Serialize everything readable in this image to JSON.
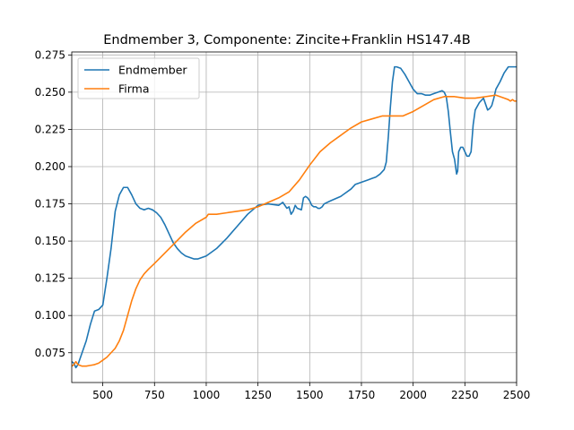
{
  "chart_data": {
    "type": "line",
    "title": "Endmember 3, Componente: Zincite+Franklin HS147.4B",
    "xlabel": "",
    "ylabel": "",
    "xlim": [
      350,
      2500
    ],
    "ylim": [
      0.055,
      0.277
    ],
    "grid": true,
    "legend_position": "top-left",
    "x_ticks": [
      500,
      750,
      1000,
      1250,
      1500,
      1750,
      2000,
      2250,
      2500
    ],
    "y_ticks": [
      0.075,
      0.1,
      0.125,
      0.15,
      0.175,
      0.2,
      0.225,
      0.25,
      0.275
    ],
    "x_tick_labels": [
      "500",
      "750",
      "1000",
      "1250",
      "1500",
      "1750",
      "2000",
      "2250",
      "2500"
    ],
    "y_tick_labels": [
      "0.075",
      "0.100",
      "0.125",
      "0.150",
      "0.175",
      "0.200",
      "0.225",
      "0.250",
      "0.275"
    ],
    "series": [
      {
        "name": "Endmember",
        "color": "#1f77b4",
        "x": [
          350,
          360,
          370,
          380,
          400,
          420,
          440,
          460,
          480,
          500,
          520,
          540,
          560,
          580,
          600,
          620,
          640,
          660,
          680,
          700,
          720,
          740,
          760,
          780,
          800,
          820,
          840,
          860,
          880,
          900,
          920,
          940,
          960,
          980,
          1000,
          1050,
          1100,
          1150,
          1200,
          1250,
          1300,
          1350,
          1370,
          1390,
          1400,
          1410,
          1420,
          1430,
          1440,
          1460,
          1470,
          1480,
          1490,
          1500,
          1510,
          1520,
          1530,
          1540,
          1550,
          1560,
          1570,
          1600,
          1650,
          1700,
          1720,
          1740,
          1760,
          1780,
          1800,
          1820,
          1840,
          1860,
          1870,
          1880,
          1890,
          1900,
          1910,
          1920,
          1940,
          1960,
          1980,
          2000,
          2020,
          2040,
          2060,
          2080,
          2100,
          2120,
          2140,
          2150,
          2160,
          2170,
          2180,
          2190,
          2200,
          2210,
          2215,
          2220,
          2230,
          2240,
          2250,
          2260,
          2270,
          2280,
          2290,
          2300,
          2320,
          2340,
          2350,
          2360,
          2370,
          2380,
          2390,
          2400,
          2420,
          2440,
          2460,
          2480,
          2500
        ],
        "y": [
          0.069,
          0.068,
          0.065,
          0.067,
          0.075,
          0.083,
          0.094,
          0.103,
          0.104,
          0.107,
          0.125,
          0.145,
          0.17,
          0.181,
          0.186,
          0.186,
          0.181,
          0.175,
          0.172,
          0.171,
          0.172,
          0.171,
          0.169,
          0.166,
          0.161,
          0.155,
          0.149,
          0.145,
          0.142,
          0.14,
          0.139,
          0.138,
          0.138,
          0.139,
          0.14,
          0.145,
          0.152,
          0.16,
          0.168,
          0.174,
          0.175,
          0.174,
          0.176,
          0.172,
          0.173,
          0.168,
          0.17,
          0.174,
          0.172,
          0.171,
          0.179,
          0.18,
          0.179,
          0.177,
          0.174,
          0.173,
          0.173,
          0.172,
          0.172,
          0.173,
          0.175,
          0.177,
          0.18,
          0.185,
          0.188,
          0.189,
          0.19,
          0.191,
          0.192,
          0.193,
          0.195,
          0.198,
          0.203,
          0.22,
          0.24,
          0.257,
          0.267,
          0.267,
          0.266,
          0.262,
          0.257,
          0.252,
          0.249,
          0.249,
          0.248,
          0.248,
          0.249,
          0.25,
          0.251,
          0.25,
          0.247,
          0.237,
          0.223,
          0.21,
          0.205,
          0.195,
          0.197,
          0.21,
          0.213,
          0.213,
          0.21,
          0.207,
          0.207,
          0.21,
          0.228,
          0.238,
          0.243,
          0.246,
          0.242,
          0.238,
          0.239,
          0.241,
          0.246,
          0.252,
          0.257,
          0.263,
          0.267,
          0.267,
          0.267
        ]
      },
      {
        "name": "Firma",
        "color": "#ff7f0e",
        "x": [
          350,
          360,
          370,
          380,
          400,
          420,
          440,
          460,
          480,
          500,
          520,
          540,
          560,
          580,
          600,
          620,
          640,
          660,
          680,
          700,
          720,
          750,
          800,
          850,
          900,
          950,
          1000,
          1010,
          1020,
          1050,
          1100,
          1150,
          1200,
          1250,
          1300,
          1350,
          1400,
          1450,
          1500,
          1550,
          1600,
          1650,
          1700,
          1750,
          1800,
          1850,
          1900,
          1950,
          2000,
          2050,
          2100,
          2150,
          2200,
          2250,
          2300,
          2350,
          2400,
          2420,
          2440,
          2460,
          2470,
          2480,
          2490,
          2500
        ],
        "y": [
          0.066,
          0.067,
          0.069,
          0.067,
          0.066,
          0.066,
          0.0665,
          0.067,
          0.068,
          0.07,
          0.072,
          0.075,
          0.078,
          0.083,
          0.09,
          0.1,
          0.11,
          0.118,
          0.124,
          0.128,
          0.131,
          0.135,
          0.142,
          0.149,
          0.156,
          0.162,
          0.166,
          0.168,
          0.168,
          0.168,
          0.169,
          0.17,
          0.171,
          0.173,
          0.176,
          0.179,
          0.183,
          0.191,
          0.201,
          0.21,
          0.216,
          0.221,
          0.226,
          0.23,
          0.232,
          0.234,
          0.234,
          0.234,
          0.237,
          0.241,
          0.245,
          0.247,
          0.247,
          0.246,
          0.246,
          0.247,
          0.248,
          0.247,
          0.246,
          0.245,
          0.244,
          0.245,
          0.244,
          0.244
        ]
      }
    ]
  }
}
